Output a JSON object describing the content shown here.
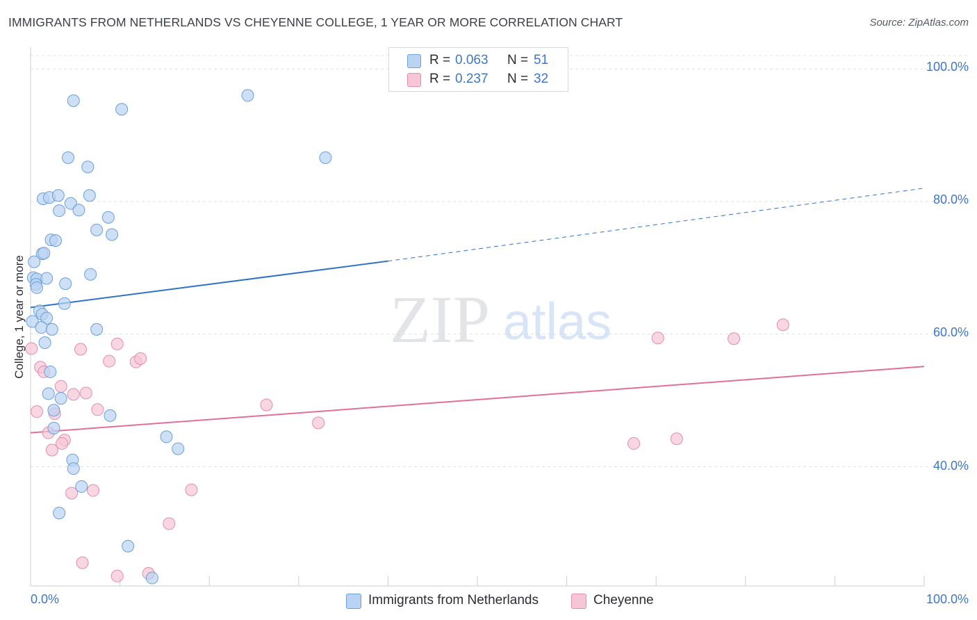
{
  "header": {
    "title": "IMMIGRANTS FROM NETHERLANDS VS CHEYENNE COLLEGE, 1 YEAR OR MORE CORRELATION CHART",
    "source": "Source: ZipAtlas.com"
  },
  "watermark": {
    "zip": "ZIP",
    "atlas": "atlas"
  },
  "legend_box": {
    "rows": [
      {
        "r_label": "R =",
        "r_value": "0.063",
        "n_label": "N =",
        "n_value": "51"
      },
      {
        "r_label": "R =",
        "r_value": "0.237",
        "n_label": "N =",
        "n_value": "32"
      }
    ]
  },
  "colors": {
    "blue_fill": "#b9d3f2",
    "blue_stroke": "#6a9fd8",
    "blue_line": "#2f72c8",
    "pink_fill": "#f7c6d6",
    "pink_stroke": "#e58bab",
    "pink_line": "#e0709a",
    "grid": "#dde1e6",
    "tick_text": "#3e76c8"
  },
  "chart_data": {
    "type": "scatter",
    "title": "IMMIGRANTS FROM NETHERLANDS VS CHEYENNE COLLEGE, 1 YEAR OR MORE CORRELATION CHART",
    "xlabel": "",
    "ylabel": "College, 1 year or more",
    "xlim": [
      0,
      100
    ],
    "ylim": [
      22,
      102
    ],
    "x_tick_labels": [
      "0.0%",
      "100.0%"
    ],
    "y_ticks": [
      40,
      60,
      80,
      100
    ],
    "y_tick_labels": [
      "40.0%",
      "60.0%",
      "80.0%",
      "100.0%"
    ],
    "grid": true,
    "legend_position": "bottom",
    "series": [
      {
        "name": "Immigrants from Netherlands",
        "color": "#6a9fd8",
        "r": 0.063,
        "n": 51,
        "trend": {
          "x0": 0,
          "y0": 64.0,
          "x1": 40,
          "y1": 71.0,
          "dashed_to_x": 100,
          "dashed_to_y": 82.0
        },
        "points": [
          [
            4.8,
            95.2
          ],
          [
            10.2,
            93.9
          ],
          [
            24.3,
            96.0
          ],
          [
            4.2,
            86.6
          ],
          [
            6.4,
            85.2
          ],
          [
            33.0,
            86.6
          ],
          [
            1.4,
            80.4
          ],
          [
            2.1,
            80.6
          ],
          [
            3.1,
            80.9
          ],
          [
            4.5,
            79.7
          ],
          [
            6.6,
            80.9
          ],
          [
            3.2,
            78.6
          ],
          [
            5.4,
            78.7
          ],
          [
            8.7,
            77.6
          ],
          [
            7.4,
            75.7
          ],
          [
            9.1,
            75.0
          ],
          [
            2.3,
            74.2
          ],
          [
            2.8,
            74.1
          ],
          [
            1.3,
            72.1
          ],
          [
            1.5,
            72.2
          ],
          [
            0.4,
            70.9
          ],
          [
            6.7,
            69.0
          ],
          [
            0.3,
            68.5
          ],
          [
            0.7,
            68.3
          ],
          [
            1.8,
            68.4
          ],
          [
            0.6,
            67.5
          ],
          [
            3.9,
            67.6
          ],
          [
            0.7,
            67.0
          ],
          [
            3.8,
            64.6
          ],
          [
            1.0,
            63.5
          ],
          [
            1.3,
            63.0
          ],
          [
            0.2,
            61.9
          ],
          [
            1.8,
            62.4
          ],
          [
            1.2,
            61.0
          ],
          [
            2.4,
            60.7
          ],
          [
            7.4,
            60.7
          ],
          [
            1.6,
            58.7
          ],
          [
            2.2,
            54.3
          ],
          [
            2.0,
            51.0
          ],
          [
            3.4,
            50.3
          ],
          [
            2.6,
            48.5
          ],
          [
            8.9,
            47.7
          ],
          [
            2.6,
            45.8
          ],
          [
            15.2,
            44.5
          ],
          [
            16.5,
            42.7
          ],
          [
            4.7,
            41.0
          ],
          [
            4.8,
            39.7
          ],
          [
            5.7,
            37.0
          ],
          [
            3.2,
            33.0
          ],
          [
            10.9,
            28.0
          ],
          [
            13.6,
            23.2
          ]
        ]
      },
      {
        "name": "Cheyenne",
        "color": "#e58bab",
        "r": 0.237,
        "n": 32,
        "trend": {
          "x0": 0,
          "y0": 45.1,
          "x1": 100,
          "y1": 55.1
        },
        "points": [
          [
            0.1,
            57.8
          ],
          [
            1.1,
            55.0
          ],
          [
            1.5,
            54.3
          ],
          [
            5.6,
            57.7
          ],
          [
            8.8,
            55.9
          ],
          [
            9.7,
            58.5
          ],
          [
            11.8,
            55.8
          ],
          [
            12.3,
            56.3
          ],
          [
            70.2,
            59.4
          ],
          [
            78.7,
            59.3
          ],
          [
            84.2,
            61.4
          ],
          [
            3.4,
            52.1
          ],
          [
            4.8,
            50.9
          ],
          [
            6.2,
            51.1
          ],
          [
            7.5,
            48.6
          ],
          [
            0.7,
            48.3
          ],
          [
            2.7,
            48.0
          ],
          [
            26.4,
            49.3
          ],
          [
            32.2,
            46.6
          ],
          [
            2.0,
            45.1
          ],
          [
            3.8,
            44.0
          ],
          [
            3.5,
            43.5
          ],
          [
            2.4,
            42.5
          ],
          [
            67.5,
            43.5
          ],
          [
            72.3,
            44.2
          ],
          [
            4.6,
            36.0
          ],
          [
            7.0,
            36.4
          ],
          [
            18.0,
            36.5
          ],
          [
            15.5,
            31.4
          ],
          [
            5.8,
            25.5
          ],
          [
            9.7,
            23.5
          ],
          [
            13.2,
            23.9
          ]
        ]
      }
    ]
  }
}
